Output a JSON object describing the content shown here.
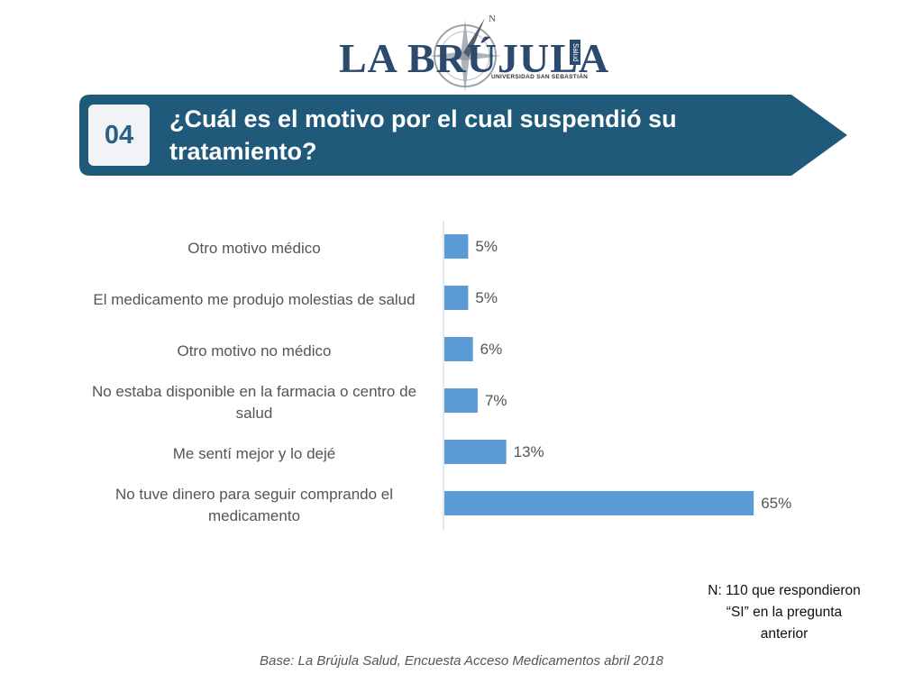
{
  "logo": {
    "brand": "LA BRÚJULA",
    "tag": "UNIVERSIDAD SAN SEBASTIÁN",
    "side": "Salud",
    "compass_letter": "N"
  },
  "banner": {
    "number": "04",
    "title": "¿Cuál es el motivo por el cual suspendió su tratamiento?",
    "color": "#1f5a7a"
  },
  "chart_data": {
    "type": "bar",
    "orientation": "horizontal",
    "categories": [
      "Otro motivo médico",
      "El medicamento me produjo molestias de salud",
      "Otro motivo no médico",
      "No estaba disponible en la farmacia o centro de salud",
      "Me sentí mejor y lo dejé",
      "No tuve dinero para seguir comprando el medicamento"
    ],
    "values": [
      5,
      5,
      6,
      7,
      13,
      65
    ],
    "value_labels": [
      "5%",
      "5%",
      "6%",
      "7%",
      "13%",
      "65%"
    ],
    "unit": "%",
    "xlim": [
      0,
      100
    ],
    "bar_color": "#5b9bd5",
    "title": "¿Cuál es el motivo por el cual suspendió su tratamiento?",
    "grid": false
  },
  "note": "N: 110 que respondieron “SI” en la pregunta anterior",
  "source": "Base: La Brújula Salud, Encuesta Acceso Medicamentos abril 2018"
}
